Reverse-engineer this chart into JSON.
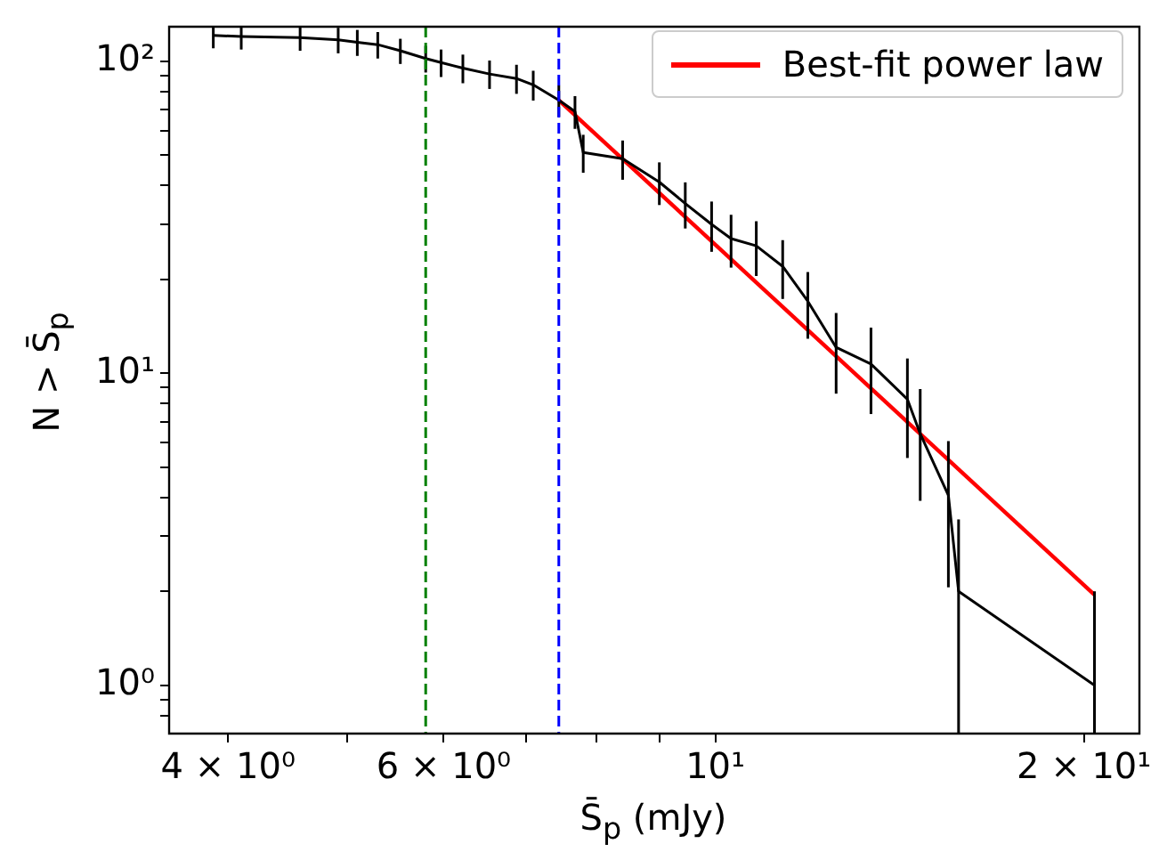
{
  "chart_data": {
    "type": "line",
    "xlabel": "S̄$_{p}$ (mJy)",
    "ylabel": "N > S̄$_{p}$",
    "log": "xy",
    "grid": false,
    "legend": "top right",
    "marker": "none",
    "line_style": "solid",
    "xlim": [
      3.58,
      22.2
    ],
    "ylim": [
      0.7,
      129
    ],
    "xticks": [
      {
        "value": 4,
        "label": "4 × 10⁰"
      },
      {
        "value": 5,
        "label": null
      },
      {
        "value": 6,
        "label": "6 × 10⁰"
      },
      {
        "value": 7,
        "label": null
      },
      {
        "value": 8,
        "label": null
      },
      {
        "value": 9,
        "label": null
      },
      {
        "value": 10,
        "label": "10¹"
      },
      {
        "value": 20,
        "label": "2 × 10¹"
      }
    ],
    "yticks": [
      {
        "value": 0.8,
        "label": null
      },
      {
        "value": 0.9,
        "label": null
      },
      {
        "value": 1,
        "label": "10⁰"
      },
      {
        "value": 2,
        "label": null
      },
      {
        "value": 3,
        "label": null
      },
      {
        "value": 4,
        "label": null
      },
      {
        "value": 5,
        "label": null
      },
      {
        "value": 6,
        "label": null
      },
      {
        "value": 7,
        "label": null
      },
      {
        "value": 8,
        "label": null
      },
      {
        "value": 9,
        "label": null
      },
      {
        "value": 10,
        "label": "10¹"
      },
      {
        "value": 20,
        "label": null
      },
      {
        "value": 30,
        "label": null
      },
      {
        "value": 40,
        "label": null
      },
      {
        "value": 50,
        "label": null
      },
      {
        "value": 60,
        "label": null
      },
      {
        "value": 70,
        "label": null
      },
      {
        "value": 80,
        "label": null
      },
      {
        "value": 90,
        "label": null
      },
      {
        "value": 100,
        "label": "10²"
      }
    ],
    "series": [
      {
        "color": "#000000",
        "x": [
          3.89,
          4.1,
          4.58,
          4.92,
          5.1,
          5.3,
          5.53,
          5.8,
          5.97,
          6.22,
          6.54,
          6.88,
          7.1,
          7.45,
          7.68,
          7.8,
          8.4,
          9.0,
          9.45,
          9.93,
          10.3,
          10.8,
          11.35,
          11.9,
          12.55,
          13.4,
          14.35,
          14.7,
          15.5,
          15.8,
          20.4
        ],
        "values": [
          121,
          120,
          119,
          117,
          115,
          113,
          108,
          102,
          99,
          95,
          91,
          88,
          84,
          75,
          69,
          51,
          48.7,
          41,
          35,
          30,
          27,
          25.6,
          22,
          17,
          12.1,
          10.7,
          8.25,
          6.4,
          4.06,
          2,
          1
        ],
        "errors": [
          11,
          11,
          11,
          11,
          11,
          11,
          10,
          10,
          10,
          10,
          9.5,
          9.4,
          9.2,
          8.7,
          8.3,
          7.1,
          7,
          6.4,
          5.9,
          5.5,
          5.2,
          5.1,
          4.7,
          4.1,
          3.5,
          3.3,
          2.9,
          2.5,
          2,
          [
            0.7,
            3.4
          ],
          [
            0.7,
            2
          ]
        ]
      },
      {
        "name": "Best-fit power law",
        "color": "#ff0000",
        "x": [
          7.45,
          20.4
        ],
        "values": [
          75,
          1.95
        ]
      }
    ],
    "ref_lines": [
      {
        "axis": "x",
        "value": 5.8,
        "color": "#008000",
        "line_style": "dashed"
      },
      {
        "axis": "x",
        "value": 7.45,
        "color": "#0000ff",
        "line_style": "dashed"
      }
    ]
  }
}
